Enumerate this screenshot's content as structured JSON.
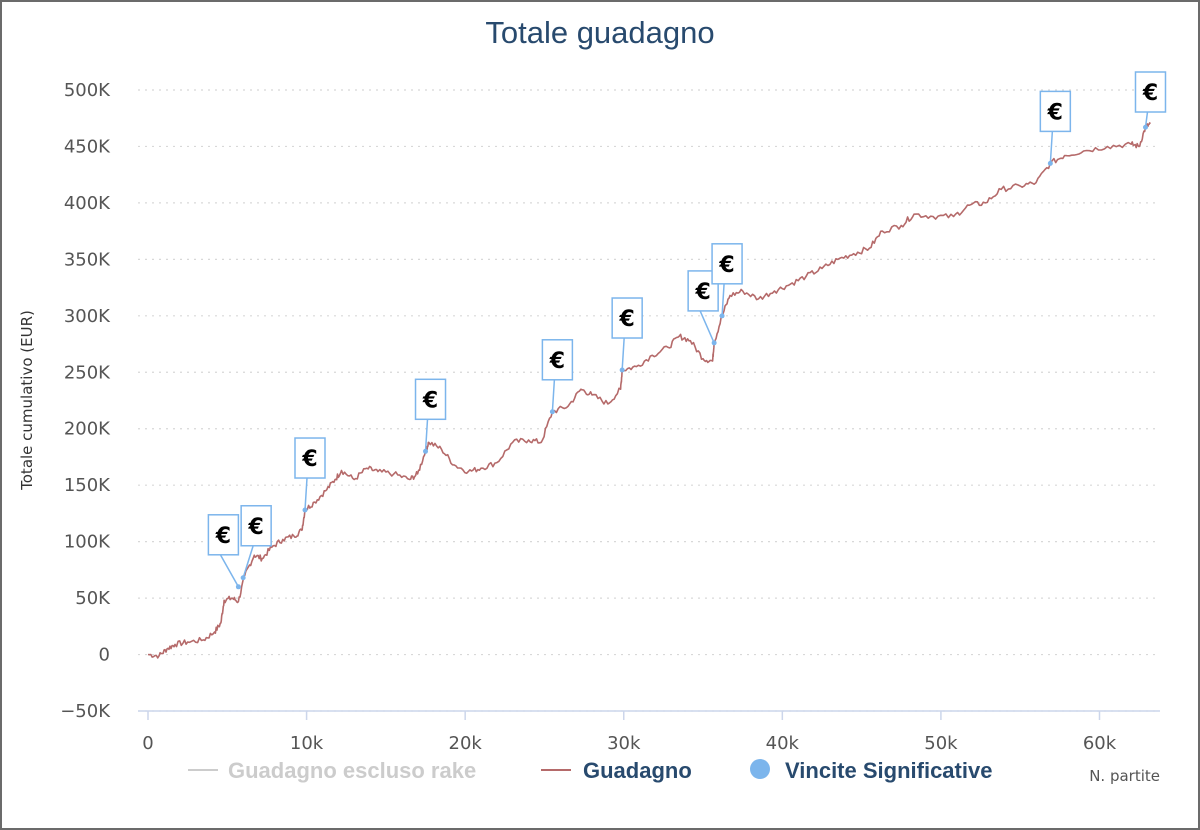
{
  "chart_data": {
    "type": "line",
    "title": "Totale guadagno",
    "xlabel": "N. partite",
    "ylabel": "Totale cumulativo (EUR)",
    "xlim": [
      0,
      63000
    ],
    "ylim": [
      -50000,
      500000
    ],
    "x_ticks": [
      0,
      10000,
      20000,
      30000,
      40000,
      50000,
      60000
    ],
    "x_tick_labels": [
      "0",
      "10k",
      "20k",
      "30k",
      "40k",
      "50k",
      "60k"
    ],
    "y_ticks": [
      -50000,
      0,
      50000,
      100000,
      150000,
      200000,
      250000,
      300000,
      350000,
      400000,
      450000,
      500000
    ],
    "y_tick_labels": [
      "−50K",
      "0",
      "50K",
      "100K",
      "150K",
      "200K",
      "250K",
      "300K",
      "350K",
      "400K",
      "450K",
      "500K"
    ],
    "grid": true,
    "legend_position": "bottom",
    "legend": [
      {
        "name": "Guadagno escluso rake",
        "color": "#cccccc",
        "marker": "line",
        "state": "hidden"
      },
      {
        "name": "Guadagno",
        "color": "#b56a6a",
        "marker": "line"
      },
      {
        "name": "Vincite Significative",
        "color": "#7cb5ec",
        "marker": "circle"
      }
    ],
    "series": [
      {
        "name": "Guadagno",
        "color": "#b56a6a",
        "points": [
          [
            0,
            0
          ],
          [
            700,
            -1000
          ],
          [
            1200,
            5000
          ],
          [
            1700,
            9000
          ],
          [
            2500,
            11000
          ],
          [
            3500,
            13000
          ],
          [
            4200,
            20000
          ],
          [
            4600,
            28000
          ],
          [
            4800,
            48000
          ],
          [
            5300,
            50000
          ],
          [
            5700,
            47000
          ],
          [
            6100,
            70000
          ],
          [
            6700,
            88000
          ],
          [
            7200,
            85000
          ],
          [
            7800,
            95000
          ],
          [
            8500,
            102000
          ],
          [
            9200,
            105000
          ],
          [
            9700,
            110000
          ],
          [
            9900,
            128000
          ],
          [
            10500,
            135000
          ],
          [
            11200,
            145000
          ],
          [
            11800,
            155000
          ],
          [
            12200,
            163000
          ],
          [
            13000,
            155000
          ],
          [
            13800,
            165000
          ],
          [
            14500,
            162000
          ],
          [
            15500,
            160000
          ],
          [
            16500,
            155000
          ],
          [
            17000,
            160000
          ],
          [
            17500,
            180000
          ],
          [
            17700,
            188000
          ],
          [
            18500,
            182000
          ],
          [
            19300,
            168000
          ],
          [
            20200,
            162000
          ],
          [
            21000,
            165000
          ],
          [
            22000,
            170000
          ],
          [
            23000,
            188000
          ],
          [
            24000,
            190000
          ],
          [
            24800,
            188000
          ],
          [
            25500,
            215000
          ],
          [
            26500,
            220000
          ],
          [
            27300,
            235000
          ],
          [
            28000,
            230000
          ],
          [
            29000,
            222000
          ],
          [
            29800,
            235000
          ],
          [
            29900,
            252000
          ],
          [
            30800,
            255000
          ],
          [
            31800,
            265000
          ],
          [
            32800,
            272000
          ],
          [
            33500,
            282000
          ],
          [
            34200,
            278000
          ],
          [
            35000,
            262000
          ],
          [
            35600,
            260000
          ],
          [
            35700,
            276000
          ],
          [
            36200,
            300000
          ],
          [
            36700,
            318000
          ],
          [
            37500,
            322000
          ],
          [
            38500,
            315000
          ],
          [
            39500,
            322000
          ],
          [
            40500,
            328000
          ],
          [
            41500,
            335000
          ],
          [
            42500,
            342000
          ],
          [
            43500,
            350000
          ],
          [
            44500,
            355000
          ],
          [
            45500,
            360000
          ],
          [
            46300,
            375000
          ],
          [
            47500,
            380000
          ],
          [
            48300,
            390000
          ],
          [
            49500,
            388000
          ],
          [
            50800,
            388000
          ],
          [
            51800,
            398000
          ],
          [
            52800,
            400000
          ],
          [
            53800,
            412000
          ],
          [
            55000,
            415000
          ],
          [
            56000,
            418000
          ],
          [
            56900,
            435000
          ],
          [
            57800,
            442000
          ],
          [
            59000,
            446000
          ],
          [
            60500,
            450000
          ],
          [
            62000,
            452000
          ],
          [
            62500,
            450000
          ],
          [
            62900,
            467000
          ],
          [
            63200,
            470000
          ]
        ]
      }
    ],
    "significant_wins": {
      "name": "Vincite Significative",
      "color": "#7cb5ec",
      "symbol": "€",
      "points": [
        [
          5700,
          60000
        ],
        [
          6000,
          68000
        ],
        [
          9900,
          128000
        ],
        [
          17500,
          180000
        ],
        [
          25500,
          215000
        ],
        [
          29900,
          252000
        ],
        [
          35700,
          276000
        ],
        [
          36200,
          300000
        ],
        [
          56900,
          435000
        ],
        [
          62900,
          467000
        ]
      ]
    }
  }
}
